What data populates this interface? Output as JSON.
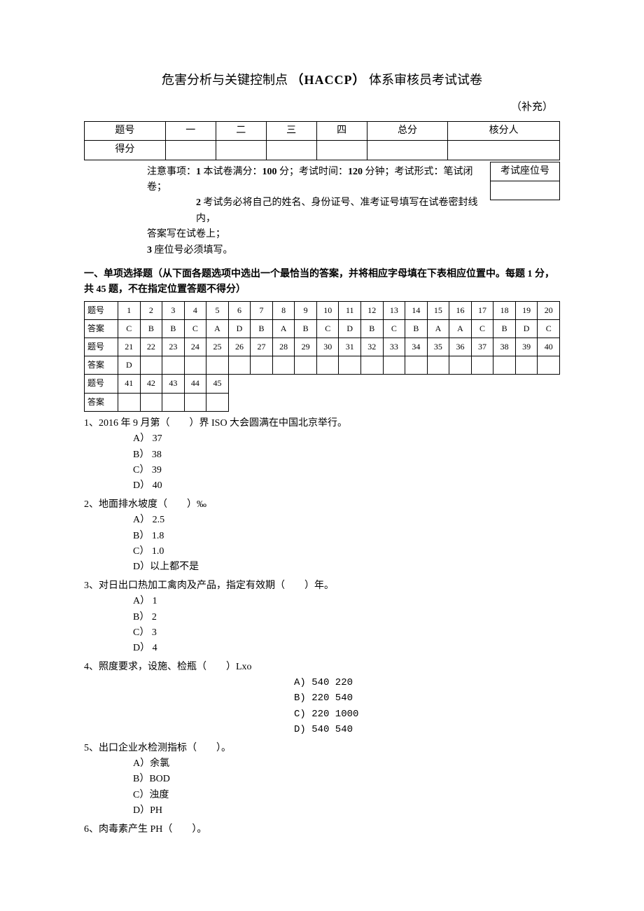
{
  "title_prefix": "危害分析与关键控制点",
  "title_bold": "（HACCP）",
  "title_suffix": " 体系审核员考试试卷",
  "subtitle": "（补充）",
  "score_table": {
    "row1": [
      "题号",
      "一",
      "二",
      "三",
      "四",
      "总分",
      "核分人"
    ],
    "row2": [
      "得分",
      "",
      "",
      "",
      "",
      "",
      ""
    ]
  },
  "notice": {
    "line1_prefix": "注意事项：",
    "line1_b1": "1",
    "line1_t1": " 本试卷满分：",
    "line1_b2": "100",
    "line1_t2": " 分；考试时间：",
    "line1_b3": "120",
    "line1_t3": " 分钟；考试形式：笔试闭卷；",
    "line2_b1": "2",
    "line2_t1": " 考试务必将自己的姓名、身份证号、准考证号填写在试卷密封线内，",
    "line3": "答案写在试卷上；",
    "line4_b": "3",
    "line4_t": " 座位号必须填写。"
  },
  "seat_label": "考试座位号",
  "section1_heading_a": "一、单项选择题（从下面各题选项中选出一个最恰当的答案，并将相应字母填在下表相应位置中。每题",
  "section1_heading_b": " 1 ",
  "section1_heading_c": "分，共",
  "section1_heading_d": " 45 ",
  "section1_heading_e": "题，不在指定位置答题不得分）",
  "ans_rows": [
    {
      "label": "题号",
      "cells": [
        "1",
        "2",
        "3",
        "4",
        "5",
        "6",
        "7",
        "8",
        "9",
        "10",
        "11",
        "12",
        "13",
        "14",
        "15",
        "16",
        "17",
        "18",
        "19",
        "20"
      ]
    },
    {
      "label": "答案",
      "cells": [
        "C",
        "B",
        "B",
        "C",
        "A",
        "D",
        "B",
        "A",
        "B",
        "C",
        "D",
        "B",
        "C",
        "B",
        "A",
        "A",
        "C",
        "B",
        "D",
        "C"
      ]
    },
    {
      "label": "题号",
      "cells": [
        "21",
        "22",
        "23",
        "24",
        "25",
        "26",
        "27",
        "28",
        "29",
        "30",
        "31",
        "32",
        "33",
        "34",
        "35",
        "36",
        "37",
        "38",
        "39",
        "40"
      ]
    },
    {
      "label": "答案",
      "cells": [
        "D",
        "",
        "",
        "",
        "",
        "",
        "",
        "",
        "",
        "",
        "",
        "",
        "",
        "",
        "",
        "",
        "",
        "",
        "",
        ""
      ]
    },
    {
      "label": "题号",
      "cells": [
        "41",
        "42",
        "43",
        "44",
        "45"
      ]
    },
    {
      "label": "答案",
      "cells": [
        "",
        "",
        "",
        "",
        ""
      ]
    }
  ],
  "questions": [
    {
      "text": "1、2016 年 9 月第（　　）界 ISO 大会圆满在中国北京举行。",
      "options": [
        "A）  37",
        "B）  38",
        "C）  39",
        "D）  40"
      ],
      "centered": false
    },
    {
      "text": "2、地面排水坡度（　　）‰",
      "options": [
        "A）  2.5",
        "B）  1.8",
        "C）  1.0",
        "D）以上都不是"
      ],
      "centered": false
    },
    {
      "text": "3、对日出口热加工禽肉及产品，指定有效期（　　）年。",
      "options": [
        "A）  1",
        "B）  2",
        "C）  3",
        "D）  4"
      ],
      "centered": false
    },
    {
      "text": "4、照度要求，设施、检瓶（　　）Lxo",
      "options": [
        "A) 540  220",
        "B) 220  540",
        "C) 220  1000",
        "D) 540  540"
      ],
      "centered": true
    },
    {
      "text": "5、出口企业水检测指标（　　）。",
      "options": [
        "A）余氯",
        "B）BOD",
        "C）浊度",
        "D）PH"
      ],
      "centered": false
    },
    {
      "text": "6、肉毒素产生 PH（　　）。",
      "options": [],
      "centered": false
    }
  ]
}
